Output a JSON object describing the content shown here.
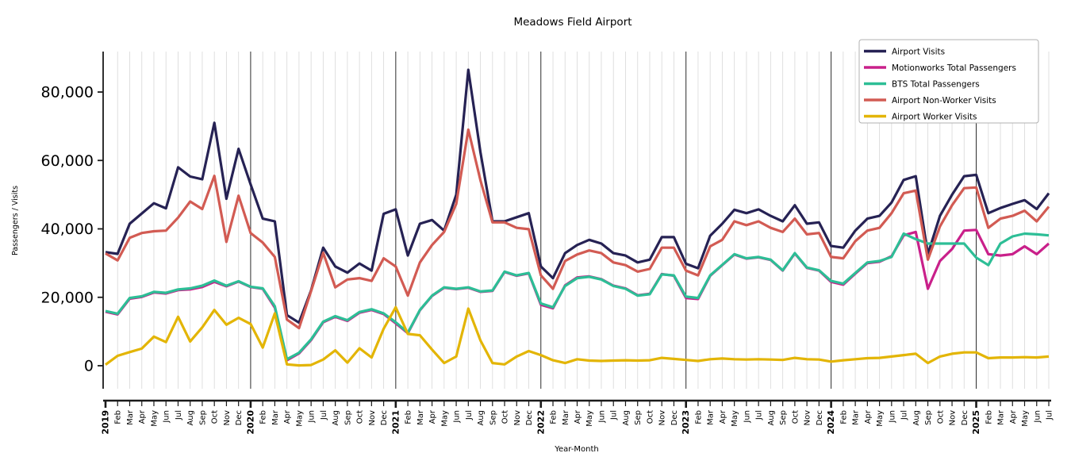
{
  "chart_data": {
    "type": "line",
    "title": "Meadows Field Airport",
    "xlabel": "Year-Month",
    "ylabel": "Passengers / Visits",
    "ylim": [
      0,
      90000
    ],
    "yticks": [
      0,
      20000,
      40000,
      60000,
      80000
    ],
    "ytick_labels": [
      "0",
      "20,000",
      "40,000",
      "60,000",
      "80,000"
    ],
    "legend_position": "upper right",
    "grid": {
      "vertical_monthly": true,
      "year_separator_lines": true,
      "horizontal": false
    },
    "x_labels": [
      "2019",
      "Feb",
      "Mar",
      "Apr",
      "May",
      "Jun",
      "Jul",
      "Aug",
      "Sep",
      "Oct",
      "Nov",
      "Dec",
      "2020",
      "Feb",
      "Mar",
      "Apr",
      "May",
      "Jun",
      "Jul",
      "Aug",
      "Sep",
      "Oct",
      "Nov",
      "Dec",
      "2021",
      "Feb",
      "Mar",
      "Apr",
      "May",
      "Jun",
      "Jul",
      "Aug",
      "Sep",
      "Oct",
      "Nov",
      "Dec",
      "2022",
      "Feb",
      "Mar",
      "Apr",
      "May",
      "Jun",
      "Jul",
      "Aug",
      "Sep",
      "Oct",
      "Nov",
      "Dec",
      "2023",
      "Feb",
      "Mar",
      "Apr",
      "May",
      "Jun",
      "Jul",
      "Aug",
      "Sep",
      "Oct",
      "Nov",
      "Dec",
      "2024",
      "Feb",
      "Mar",
      "Apr",
      "May",
      "Jun",
      "Jul",
      "Aug",
      "Sep",
      "Oct",
      "Nov",
      "Dec",
      "2025",
      "Feb",
      "Mar",
      "Apr",
      "May",
      "Jun",
      "Jul"
    ],
    "year_indices": [
      0,
      12,
      24,
      36,
      48,
      60,
      72
    ],
    "series": [
      {
        "name": "Airport Visits",
        "color": "#262254",
        "values": [
          33200,
          32700,
          41500,
          44500,
          47500,
          46000,
          58000,
          55300,
          54500,
          71000,
          48800,
          63400,
          53000,
          43000,
          42200,
          14800,
          12600,
          22000,
          34500,
          29000,
          27200,
          29900,
          27800,
          44400,
          45700,
          32200,
          41500,
          42600,
          39500,
          50000,
          86500,
          62400,
          42200,
          42200,
          43400,
          44600,
          29000,
          25600,
          32900,
          35300,
          36800,
          35700,
          32900,
          32200,
          30200,
          31000,
          37600,
          37600,
          29800,
          28500,
          38000,
          41500,
          45600,
          44600,
          45700,
          43800,
          42200,
          46900,
          41500,
          41900,
          35000,
          34500,
          39500,
          43000,
          43800,
          47700,
          54300,
          55400,
          32600,
          43800,
          50000,
          55400,
          55800,
          44600,
          46100,
          47300,
          48400,
          45800,
          50400
        ]
      },
      {
        "name": "Motionworks Total Passengers",
        "color": "#c9208a",
        "values": [
          15800,
          15000,
          19600,
          20100,
          21400,
          21100,
          22100,
          22300,
          23000,
          24500,
          23200,
          24600,
          23000,
          22500,
          17000,
          1600,
          3600,
          7500,
          12700,
          14300,
          13100,
          15500,
          16300,
          15100,
          12400,
          9500,
          16200,
          20400,
          22800,
          22400,
          22800,
          21600,
          21900,
          27400,
          26300,
          27000,
          17800,
          16800,
          23500,
          25800,
          26100,
          25300,
          23400,
          22600,
          20600,
          21000,
          26800,
          26300,
          19800,
          19500,
          26300,
          29400,
          32500,
          31300,
          31700,
          30900,
          27800,
          32800,
          28600,
          27800,
          24500,
          23700,
          26900,
          30000,
          30400,
          32000,
          38100,
          39100,
          22500,
          30600,
          34100,
          39500,
          39700,
          32600,
          32200,
          32600,
          34900,
          32600,
          35700
        ]
      },
      {
        "name": "BTS Total Passengers",
        "color": "#2dbe96",
        "values": [
          16000,
          15200,
          19800,
          20300,
          21600,
          21300,
          22300,
          22600,
          23400,
          24900,
          23400,
          24700,
          23100,
          22600,
          17400,
          1900,
          3800,
          7700,
          12900,
          14500,
          13300,
          15700,
          16500,
          15300,
          12700,
          9700,
          16300,
          20500,
          22900,
          22500,
          22900,
          21700,
          22000,
          27500,
          26400,
          27100,
          18200,
          17100,
          23300,
          25600,
          26000,
          25200,
          23300,
          22500,
          20500,
          20900,
          26700,
          26400,
          20200,
          19800,
          26400,
          29500,
          32600,
          31400,
          31800,
          31000,
          27900,
          32900,
          28700,
          27900,
          24800,
          24000,
          27100,
          30200,
          30600,
          31800,
          38600,
          37000,
          35700,
          35700,
          35700,
          35700,
          31600,
          29400,
          35700,
          37800,
          38600,
          38400,
          38100
        ]
      },
      {
        "name": "Airport Non-Worker Visits",
        "color": "#d25b53",
        "values": [
          32800,
          30800,
          37400,
          38800,
          39300,
          39500,
          43300,
          48000,
          45800,
          55500,
          36200,
          49700,
          38800,
          36000,
          31800,
          13500,
          11000,
          21800,
          33000,
          22900,
          25200,
          25600,
          24800,
          31400,
          29000,
          20500,
          30200,
          35300,
          39100,
          47300,
          69000,
          54200,
          41900,
          41900,
          40300,
          39900,
          26400,
          22500,
          30600,
          32500,
          33700,
          32900,
          30200,
          29400,
          27500,
          28300,
          34500,
          34500,
          27800,
          26400,
          34900,
          36800,
          42200,
          41100,
          42200,
          40300,
          39100,
          43000,
          38400,
          38800,
          31800,
          31400,
          36400,
          39500,
          40300,
          44600,
          50400,
          51200,
          31000,
          40700,
          46900,
          51900,
          52100,
          40300,
          43000,
          43800,
          45300,
          42200,
          46500
        ]
      },
      {
        "name": "Airport Worker Visits",
        "color": "#e3b505",
        "values": [
          300,
          2900,
          4000,
          5000,
          8500,
          6900,
          14300,
          7100,
          11200,
          16300,
          12000,
          14000,
          12200,
          5300,
          15300,
          400,
          100,
          200,
          1800,
          4500,
          900,
          5100,
          2400,
          10800,
          17100,
          9300,
          8900,
          4700,
          800,
          2700,
          16700,
          7400,
          800,
          400,
          2700,
          4300,
          3100,
          1600,
          800,
          1900,
          1500,
          1400,
          1500,
          1600,
          1500,
          1600,
          2300,
          2000,
          1700,
          1400,
          1900,
          2100,
          1900,
          1800,
          1900,
          1800,
          1700,
          2300,
          1900,
          1800,
          1200,
          1600,
          1900,
          2200,
          2300,
          2700,
          3100,
          3500,
          800,
          2700,
          3500,
          3900,
          3900,
          2200,
          2400,
          2400,
          2500,
          2400,
          2700
        ]
      }
    ]
  }
}
